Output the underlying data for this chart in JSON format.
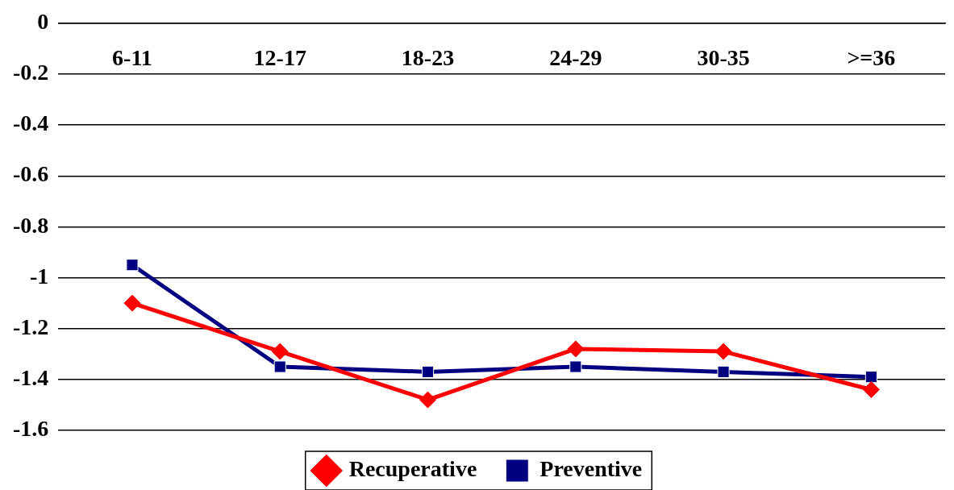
{
  "chart_data": {
    "type": "line",
    "categories": [
      "6-11",
      "12-17",
      "18-23",
      "24-29",
      "30-35",
      ">=36"
    ],
    "series": [
      {
        "name": "Recuperative",
        "color": "#ff0000",
        "marker": "diamond",
        "values": [
          -1.1,
          -1.29,
          -1.48,
          -1.28,
          -1.29,
          -1.44
        ]
      },
      {
        "name": "Preventive",
        "color": "#000080",
        "marker": "square",
        "values": [
          -0.95,
          -1.35,
          -1.37,
          -1.35,
          -1.37,
          -1.39
        ]
      }
    ],
    "ylim": [
      -1.6,
      0
    ],
    "yticks": [
      -1.6,
      -1.4,
      -1.2,
      -1,
      -0.8,
      -0.6,
      -0.4,
      -0.2,
      0
    ],
    "grid": "y",
    "legend": "bottom",
    "line_style": "solid"
  }
}
